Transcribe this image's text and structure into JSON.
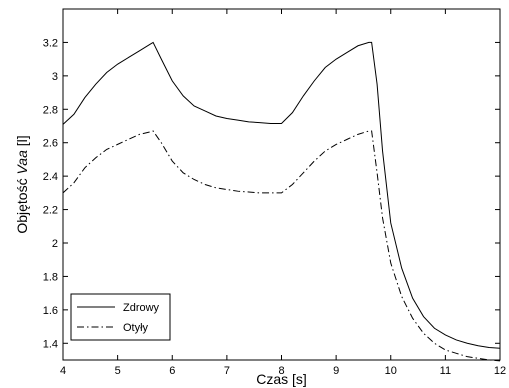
{
  "chart_data": {
    "type": "line",
    "title": "",
    "xlabel": "Czas [s]",
    "ylabel_prefix": "Objętość ",
    "ylabel_var": "V",
    "ylabel_sub": "aa",
    "ylabel_suffix": " [l]",
    "xlim": [
      4,
      12
    ],
    "ylim": [
      1.3,
      3.4
    ],
    "xticks": [
      4,
      5,
      6,
      7,
      8,
      9,
      10,
      11,
      12
    ],
    "yticks": [
      1.4,
      1.6,
      1.8,
      2,
      2.2,
      2.4,
      2.6,
      2.8,
      3,
      3.2
    ],
    "grid": false,
    "legend_position": "bottom-left",
    "series": [
      {
        "name": "Zdrowy",
        "style": "solid",
        "color": "#000000",
        "points": [
          [
            4.0,
            2.71
          ],
          [
            4.2,
            2.77
          ],
          [
            4.4,
            2.87
          ],
          [
            4.6,
            2.95
          ],
          [
            4.8,
            3.02
          ],
          [
            5.0,
            3.07
          ],
          [
            5.2,
            3.11
          ],
          [
            5.4,
            3.15
          ],
          [
            5.6,
            3.19
          ],
          [
            5.65,
            3.2
          ],
          [
            5.8,
            3.1
          ],
          [
            6.0,
            2.97
          ],
          [
            6.2,
            2.88
          ],
          [
            6.4,
            2.82
          ],
          [
            6.6,
            2.79
          ],
          [
            6.8,
            2.76
          ],
          [
            7.0,
            2.745
          ],
          [
            7.2,
            2.735
          ],
          [
            7.4,
            2.725
          ],
          [
            7.6,
            2.72
          ],
          [
            7.8,
            2.715
          ],
          [
            8.0,
            2.715
          ],
          [
            8.2,
            2.78
          ],
          [
            8.4,
            2.88
          ],
          [
            8.6,
            2.97
          ],
          [
            8.8,
            3.05
          ],
          [
            9.0,
            3.1
          ],
          [
            9.2,
            3.14
          ],
          [
            9.4,
            3.18
          ],
          [
            9.6,
            3.2
          ],
          [
            9.65,
            3.2
          ],
          [
            9.75,
            2.95
          ],
          [
            9.85,
            2.55
          ],
          [
            10.0,
            2.12
          ],
          [
            10.2,
            1.85
          ],
          [
            10.4,
            1.67
          ],
          [
            10.6,
            1.56
          ],
          [
            10.8,
            1.49
          ],
          [
            11.0,
            1.45
          ],
          [
            11.2,
            1.42
          ],
          [
            11.4,
            1.4
          ],
          [
            11.6,
            1.385
          ],
          [
            11.8,
            1.375
          ],
          [
            12.0,
            1.37
          ]
        ]
      },
      {
        "name": "Otyły",
        "style": "dashdot",
        "color": "#000000",
        "points": [
          [
            4.0,
            2.3
          ],
          [
            4.2,
            2.36
          ],
          [
            4.4,
            2.45
          ],
          [
            4.6,
            2.51
          ],
          [
            4.8,
            2.56
          ],
          [
            5.0,
            2.59
          ],
          [
            5.2,
            2.62
          ],
          [
            5.4,
            2.65
          ],
          [
            5.6,
            2.665
          ],
          [
            5.65,
            2.67
          ],
          [
            5.8,
            2.6
          ],
          [
            6.0,
            2.49
          ],
          [
            6.2,
            2.42
          ],
          [
            6.4,
            2.38
          ],
          [
            6.6,
            2.35
          ],
          [
            6.8,
            2.33
          ],
          [
            7.0,
            2.32
          ],
          [
            7.2,
            2.31
          ],
          [
            7.4,
            2.305
          ],
          [
            7.6,
            2.3
          ],
          [
            7.8,
            2.3
          ],
          [
            8.0,
            2.3
          ],
          [
            8.2,
            2.35
          ],
          [
            8.4,
            2.42
          ],
          [
            8.6,
            2.49
          ],
          [
            8.8,
            2.55
          ],
          [
            9.0,
            2.59
          ],
          [
            9.2,
            2.62
          ],
          [
            9.4,
            2.65
          ],
          [
            9.6,
            2.67
          ],
          [
            9.65,
            2.67
          ],
          [
            9.75,
            2.42
          ],
          [
            9.85,
            2.15
          ],
          [
            10.0,
            1.88
          ],
          [
            10.2,
            1.68
          ],
          [
            10.4,
            1.55
          ],
          [
            10.6,
            1.46
          ],
          [
            10.8,
            1.4
          ],
          [
            11.0,
            1.36
          ],
          [
            11.2,
            1.34
          ],
          [
            11.4,
            1.32
          ],
          [
            11.6,
            1.31
          ],
          [
            11.8,
            1.3
          ],
          [
            12.0,
            1.295
          ]
        ]
      }
    ]
  }
}
